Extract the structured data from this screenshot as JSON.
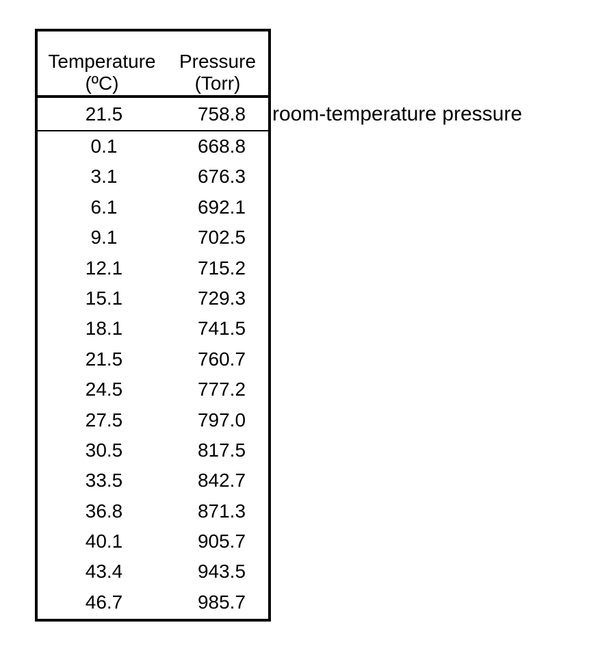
{
  "table": {
    "headers": {
      "temperature": [
        "Temperature",
        "(ºC)"
      ],
      "pressure": [
        "Pressure",
        "(Torr)"
      ]
    },
    "room_row": {
      "temperature": "21.5",
      "pressure": "758.8"
    },
    "rows": [
      {
        "temperature": "0.1",
        "pressure": "668.8"
      },
      {
        "temperature": "3.1",
        "pressure": "676.3"
      },
      {
        "temperature": "6.1",
        "pressure": "692.1"
      },
      {
        "temperature": "9.1",
        "pressure": "702.5"
      },
      {
        "temperature": "12.1",
        "pressure": "715.2"
      },
      {
        "temperature": "15.1",
        "pressure": "729.3"
      },
      {
        "temperature": "18.1",
        "pressure": "741.5"
      },
      {
        "temperature": "21.5",
        "pressure": "760.7"
      },
      {
        "temperature": "24.5",
        "pressure": "777.2"
      },
      {
        "temperature": "27.5",
        "pressure": "797.0"
      },
      {
        "temperature": "30.5",
        "pressure": "817.5"
      },
      {
        "temperature": "33.5",
        "pressure": "842.7"
      },
      {
        "temperature": "36.8",
        "pressure": "871.3"
      },
      {
        "temperature": "40.1",
        "pressure": "905.7"
      },
      {
        "temperature": "43.4",
        "pressure": "943.5"
      },
      {
        "temperature": "46.7",
        "pressure": "985.7"
      }
    ]
  },
  "annotation": "room-temperature pressure"
}
